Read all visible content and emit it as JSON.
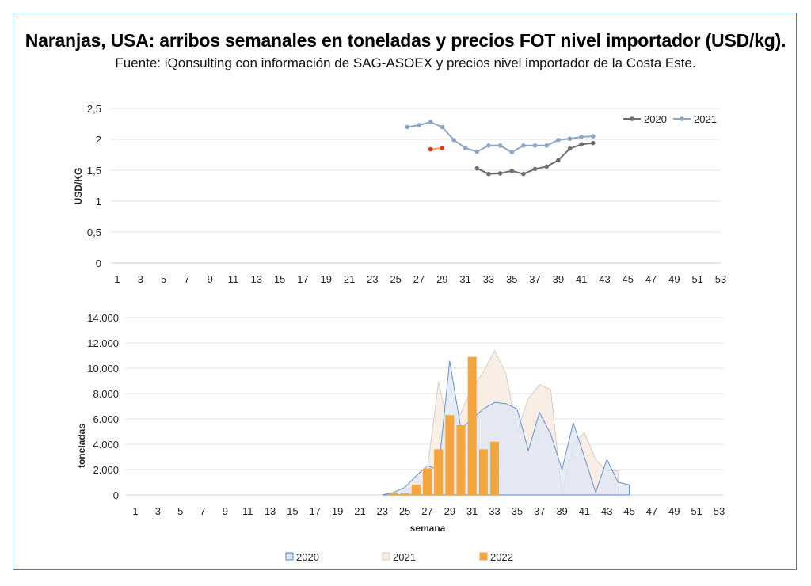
{
  "title": "Naranjas, USA: arribos semanales en toneladas y precios FOT nivel importador (USD/kg).",
  "subtitle": "Fuente: iQonsulting con información de SAG-ASOEX y precios nivel importador de la Costa Este.",
  "colors": {
    "frame": "#4a7eb5",
    "s2020": "#6e6e6e",
    "s2021": "#8ea6c6",
    "s2022": "#e8341c",
    "a2020_fill": "#dde6f3",
    "a2020_stroke": "#5b86c4",
    "a2021_fill": "#f8ebe0",
    "a2021_stroke": "#cfc9c3",
    "b2022": "#f4a53b"
  },
  "chart_data": [
    {
      "type": "line",
      "ylabel": "USD/KG",
      "xlabel": "",
      "ylim": [
        0,
        2.5
      ],
      "ytick_labels": [
        "0",
        "0,5",
        "1",
        "1,5",
        "2",
        "2,5"
      ],
      "xlim": [
        1,
        53
      ],
      "xtick_labels": [
        "1",
        "3",
        "5",
        "7",
        "9",
        "11",
        "13",
        "15",
        "17",
        "19",
        "21",
        "23",
        "25",
        "27",
        "29",
        "31",
        "33",
        "35",
        "37",
        "39",
        "41",
        "43",
        "45",
        "47",
        "49",
        "51",
        "53"
      ],
      "legend": [
        "2020",
        "2021"
      ],
      "legend_position": "top-right",
      "grid": true,
      "series": [
        {
          "name": "2020",
          "x": [
            32,
            33,
            34,
            35,
            36,
            37,
            38,
            39,
            40,
            41,
            42
          ],
          "values": [
            1.53,
            1.44,
            1.45,
            1.49,
            1.44,
            1.52,
            1.56,
            1.66,
            1.85,
            1.92,
            1.94
          ]
        },
        {
          "name": "2021",
          "x": [
            26,
            27,
            28,
            29,
            30,
            31,
            32,
            33,
            34,
            35,
            36,
            37,
            38,
            39,
            40,
            41,
            42
          ],
          "values": [
            2.2,
            2.23,
            2.28,
            2.2,
            1.99,
            1.86,
            1.8,
            1.9,
            1.9,
            1.79,
            1.9,
            1.9,
            1.9,
            1.99,
            2.01,
            2.04,
            2.05
          ]
        },
        {
          "name": "2022",
          "x": [
            28,
            29
          ],
          "values": [
            1.84,
            1.86
          ]
        }
      ]
    },
    {
      "type": "area",
      "ylabel": "toneladas",
      "xlabel": "semana",
      "ylim": [
        0,
        14000
      ],
      "ytick_labels": [
        "0",
        "2.000",
        "4.000",
        "6.000",
        "8.000",
        "10.000",
        "12.000",
        "14.000"
      ],
      "xlim": [
        1,
        53
      ],
      "xtick_labels": [
        "1",
        "3",
        "5",
        "7",
        "9",
        "11",
        "13",
        "15",
        "17",
        "19",
        "21",
        "23",
        "25",
        "27",
        "29",
        "31",
        "33",
        "35",
        "37",
        "39",
        "41",
        "43",
        "45",
        "47",
        "49",
        "51",
        "53"
      ],
      "legend": [
        "2020",
        "2021",
        "2022"
      ],
      "legend_position": "bottom",
      "grid": true,
      "series": [
        {
          "name": "2020",
          "type": "area",
          "x": [
            23,
            24,
            25,
            26,
            27,
            28,
            29,
            30,
            31,
            32,
            33,
            34,
            35,
            36,
            37,
            38,
            39,
            40,
            41,
            42,
            43,
            44,
            45
          ],
          "values": [
            0,
            200,
            600,
            1500,
            2300,
            2000,
            10600,
            5200,
            6000,
            6800,
            7300,
            7200,
            6800,
            3500,
            6500,
            4800,
            2000,
            5700,
            3000,
            200,
            2800,
            1000,
            800
          ]
        },
        {
          "name": "2021",
          "type": "area",
          "x": [
            24,
            25,
            26,
            27,
            28,
            29,
            30,
            31,
            32,
            33,
            34,
            35,
            36,
            37,
            38,
            39,
            40,
            41,
            42,
            43,
            44
          ],
          "values": [
            0,
            300,
            800,
            2000,
            8900,
            5000,
            6500,
            8500,
            9700,
            11400,
            9600,
            5000,
            7600,
            8700,
            8300,
            0,
            4000,
            4900,
            2800,
            1900,
            1900
          ]
        },
        {
          "name": "2022",
          "type": "bar",
          "x": [
            24,
            25,
            26,
            27,
            28,
            29,
            30,
            31,
            32,
            33
          ],
          "values": [
            150,
            120,
            800,
            2100,
            3600,
            6300,
            5500,
            10900,
            3600,
            4200
          ]
        }
      ]
    }
  ]
}
